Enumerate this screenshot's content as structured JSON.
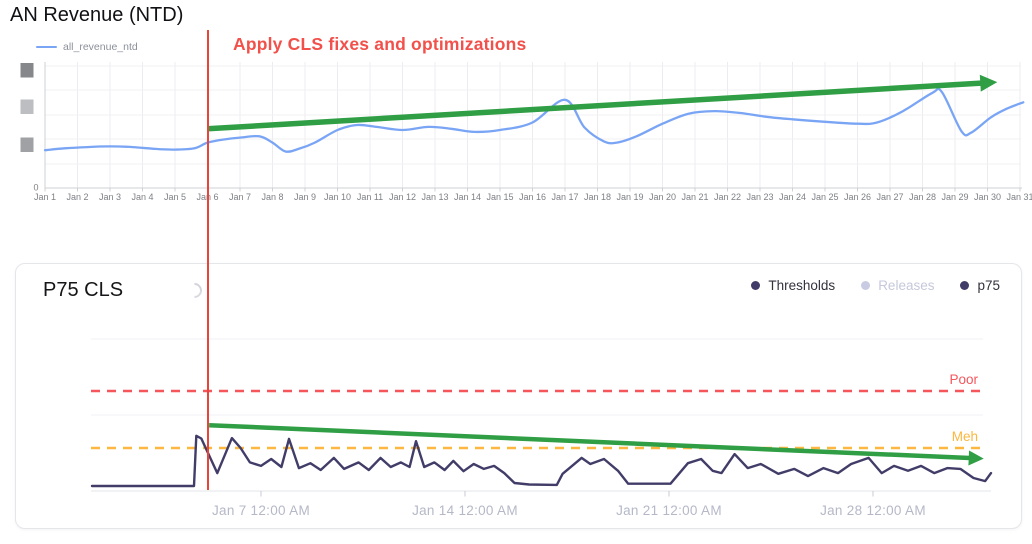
{
  "ui": {
    "top": {
      "title": "AN Revenue (NTD)",
      "legend_label": "all_revenue_ntd",
      "annotation": "Apply CLS fixes and optimizations"
    },
    "bottom": {
      "title": "P75 CLS",
      "legend_labels": {
        "thresholds": "Thresholds",
        "releases": "Releases",
        "p75": "p75"
      }
    }
  },
  "colors": {
    "revenue_line": "#7aa5f5",
    "trend_arrow": "#2f9e44",
    "event_line": "#e8443b",
    "annotation_text": "#f2504b",
    "p75_line": "#413d68",
    "poor_threshold": "#f5565c",
    "meh_threshold": "#fcb73f",
    "muted_legend": "#c9cbe3",
    "axis_label_gray": "#7e8085",
    "bottom_axis_label": "#b5b8c7"
  },
  "chart_data": [
    {
      "type": "line",
      "title": "AN Revenue (NTD)",
      "legend_position": "top-left",
      "grid": true,
      "x_axis": {
        "unit": "day of January",
        "tick_labels": [
          "Jan 1",
          "Jan 2",
          "Jan 3",
          "Jan 4",
          "Jan 5",
          "Jan 6",
          "Jan 7",
          "Jan 8",
          "Jan 9",
          "Jan 10",
          "Jan 11",
          "Jan 12",
          "Jan 13",
          "Jan 14",
          "Jan 15",
          "Jan 16",
          "Jan 17",
          "Jan 18",
          "Jan 19",
          "Jan 20",
          "Jan 21",
          "Jan 22",
          "Jan 23",
          "Jan 24",
          "Jan 25",
          "Jan 26",
          "Jan 27",
          "Jan 28",
          "Jan 29",
          "Jan 30",
          "Jan 31"
        ]
      },
      "y_axis": {
        "min": 0,
        "max": 100,
        "zero_label": "0",
        "tick_labels_redacted": true,
        "redacted_tick_count": 3,
        "unit": "relative revenue (labels redacted)"
      },
      "series": [
        {
          "name": "all_revenue_ntd",
          "color": "#7aa5f5",
          "points": [
            [
              1,
              30
            ],
            [
              1.6,
              31.5
            ],
            [
              2.3,
              32.5
            ],
            [
              3,
              33
            ],
            [
              3.7,
              32.5
            ],
            [
              4.4,
              31
            ],
            [
              5,
              30.5
            ],
            [
              5.6,
              31.5
            ],
            [
              6,
              36
            ],
            [
              6.5,
              38.5
            ],
            [
              7,
              40
            ],
            [
              7.6,
              41
            ],
            [
              8,
              36
            ],
            [
              8.4,
              29
            ],
            [
              8.8,
              31
            ],
            [
              9.3,
              36
            ],
            [
              10,
              46
            ],
            [
              10.6,
              50
            ],
            [
              11.2,
              48.5
            ],
            [
              12,
              46
            ],
            [
              12.8,
              48.5
            ],
            [
              13.5,
              47
            ],
            [
              14.2,
              44.5
            ],
            [
              15,
              46
            ],
            [
              16,
              52
            ],
            [
              17,
              70
            ],
            [
              17.6,
              48
            ],
            [
              18.2,
              37
            ],
            [
              18.6,
              36
            ],
            [
              19.2,
              41
            ],
            [
              20,
              51
            ],
            [
              20.8,
              59
            ],
            [
              21.6,
              61
            ],
            [
              22.4,
              59.5
            ],
            [
              23.2,
              56.5
            ],
            [
              24,
              54.5
            ],
            [
              25,
              52.5
            ],
            [
              26,
              51
            ],
            [
              26.6,
              52
            ],
            [
              27.4,
              61
            ],
            [
              28.3,
              75.5
            ],
            [
              28.6,
              76
            ],
            [
              29.2,
              45
            ],
            [
              29.5,
              44
            ],
            [
              30.1,
              56
            ],
            [
              30.6,
              63
            ],
            [
              31.1,
              68
            ]
          ]
        }
      ],
      "annotations": [
        {
          "type": "vline",
          "x_day": 6,
          "color": "#e8443b",
          "label": "Apply CLS fixes and optimizations"
        },
        {
          "type": "trend_arrow",
          "direction": "up",
          "color": "#2f9e44",
          "from": [
            6,
            47
          ],
          "to": [
            30.3,
            84
          ]
        }
      ]
    },
    {
      "type": "line",
      "title": "P75 CLS",
      "grid": true,
      "legend": [
        {
          "label": "Thresholds",
          "active": true
        },
        {
          "label": "Releases",
          "active": false
        },
        {
          "label": "p75",
          "active": true
        }
      ],
      "x_axis": {
        "unit": "day of January",
        "tick_days": [
          7,
          14,
          21,
          28
        ],
        "tick_labels": [
          "Jan 7 12:00 AM",
          "Jan 14 12:00 AM",
          "Jan 21 12:00 AM",
          "Jan 28 12:00 AM"
        ]
      },
      "y_axis": {
        "min": 0,
        "max": 0.4,
        "unit": "CLS (estimated scale)",
        "visible_tick_labels": false
      },
      "thresholds": [
        {
          "label": "Poor",
          "value": 0.25,
          "color": "#f5565c",
          "style": "dashed"
        },
        {
          "label": "Meh",
          "value": 0.1,
          "color": "#fcb73f",
          "style": "dashed"
        }
      ],
      "series": [
        {
          "name": "p75",
          "color": "#413d68",
          "points": [
            [
              1.2,
              0
            ],
            [
              4.7,
              0
            ],
            [
              4.78,
              0.132
            ],
            [
              4.95,
              0.125
            ],
            [
              5.5,
              0.034
            ],
            [
              6,
              0.126
            ],
            [
              6.3,
              0.1
            ],
            [
              6.62,
              0.062
            ],
            [
              7,
              0.053
            ],
            [
              7.35,
              0.071
            ],
            [
              7.7,
              0.05
            ],
            [
              7.96,
              0.124
            ],
            [
              8.3,
              0.047
            ],
            [
              8.7,
              0.06
            ],
            [
              9.05,
              0.042
            ],
            [
              9.5,
              0.074
            ],
            [
              9.85,
              0.045
            ],
            [
              10.35,
              0.062
            ],
            [
              10.7,
              0.042
            ],
            [
              11.1,
              0.074
            ],
            [
              11.45,
              0.05
            ],
            [
              11.8,
              0.062
            ],
            [
              12.1,
              0.05
            ],
            [
              12.32,
              0.118
            ],
            [
              12.6,
              0.05
            ],
            [
              12.95,
              0.062
            ],
            [
              13.3,
              0.042
            ],
            [
              13.6,
              0.066
            ],
            [
              13.95,
              0.039
            ],
            [
              14.3,
              0.058
            ],
            [
              14.65,
              0.045
            ],
            [
              15,
              0.053
            ],
            [
              15.35,
              0.034
            ],
            [
              15.7,
              0.008
            ],
            [
              16.2,
              0.004
            ],
            [
              17.15,
              0.003
            ],
            [
              17.35,
              0.032
            ],
            [
              18,
              0.074
            ],
            [
              18.3,
              0.058
            ],
            [
              18.77,
              0.071
            ],
            [
              19.25,
              0.04
            ],
            [
              19.6,
              0.006
            ],
            [
              21.05,
              0.006
            ],
            [
              21.65,
              0.06
            ],
            [
              22.1,
              0.071
            ],
            [
              22.5,
              0.04
            ],
            [
              22.8,
              0.034
            ],
            [
              23.25,
              0.084
            ],
            [
              23.7,
              0.047
            ],
            [
              24.15,
              0.058
            ],
            [
              24.75,
              0.032
            ],
            [
              25.3,
              0.045
            ],
            [
              25.77,
              0.026
            ],
            [
              26.3,
              0.047
            ],
            [
              26.8,
              0.034
            ],
            [
              27.25,
              0.058
            ],
            [
              27.85,
              0.074
            ],
            [
              28.3,
              0.034
            ],
            [
              28.72,
              0.053
            ],
            [
              29.2,
              0.04
            ],
            [
              29.65,
              0.053
            ],
            [
              30.1,
              0.034
            ],
            [
              30.55,
              0.047
            ],
            [
              31,
              0.045
            ],
            [
              31.45,
              0.021
            ],
            [
              31.85,
              0.013
            ],
            [
              32.05,
              0.034
            ]
          ]
        }
      ],
      "annotations": [
        {
          "type": "vline",
          "x_day": 5.15,
          "color": "#e8443b"
        },
        {
          "type": "trend_arrow",
          "direction": "down",
          "color": "#2f9e44",
          "from": [
            5.22,
            0.16
          ],
          "to": [
            31.8,
            0.072
          ]
        }
      ]
    }
  ]
}
